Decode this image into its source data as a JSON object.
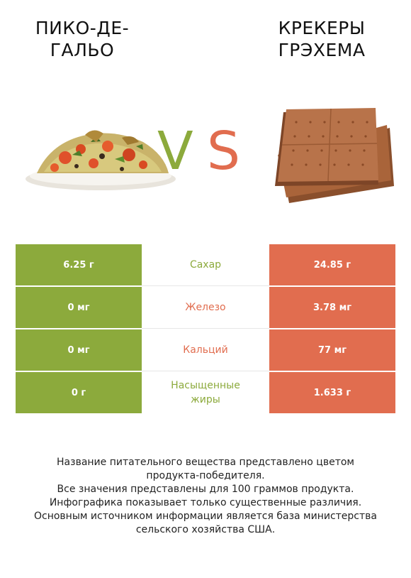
{
  "products": {
    "left": {
      "name": "Пико-де-гальо",
      "line1": "ПИКО-ДЕ-",
      "line2": "ГАЛЬО"
    },
    "right": {
      "name": "Крекеры грэхема",
      "line1": "КРЕКЕРЫ",
      "line2": "ГРЭХЕМА"
    }
  },
  "vs": {
    "v": "V",
    "s": "S"
  },
  "colors": {
    "left": "#8caa3c",
    "right": "#e16d4f",
    "text": "#222222"
  },
  "rows": [
    {
      "left": "6.25 г",
      "nutrient_line1": "Сахар",
      "nutrient_line2": "",
      "right": "24.85 г",
      "winner": "left"
    },
    {
      "left": "0 мг",
      "nutrient_line1": "Железо",
      "nutrient_line2": "",
      "right": "3.78 мг",
      "winner": "right"
    },
    {
      "left": "0 мг",
      "nutrient_line1": "Кальций",
      "nutrient_line2": "",
      "right": "77 мг",
      "winner": "right"
    },
    {
      "left": "0 г",
      "nutrient_line1": "Насыщенные",
      "nutrient_line2": "жиры",
      "right": "1.633 г",
      "winner": "left"
    }
  ],
  "footer": {
    "line1": "Название питательного вещества представлено цветом",
    "line2": "продукта-победителя.",
    "line3": "Все значения представлены для 100 граммов продукта.",
    "line4": "Инфографика показывает только существенные различия.",
    "line5": "Основным источником информации является база министерства",
    "line6": "сельского хозяйства США."
  },
  "icons": {
    "left_image": "pico-de-gallo-image",
    "right_image": "graham-crackers-image"
  }
}
